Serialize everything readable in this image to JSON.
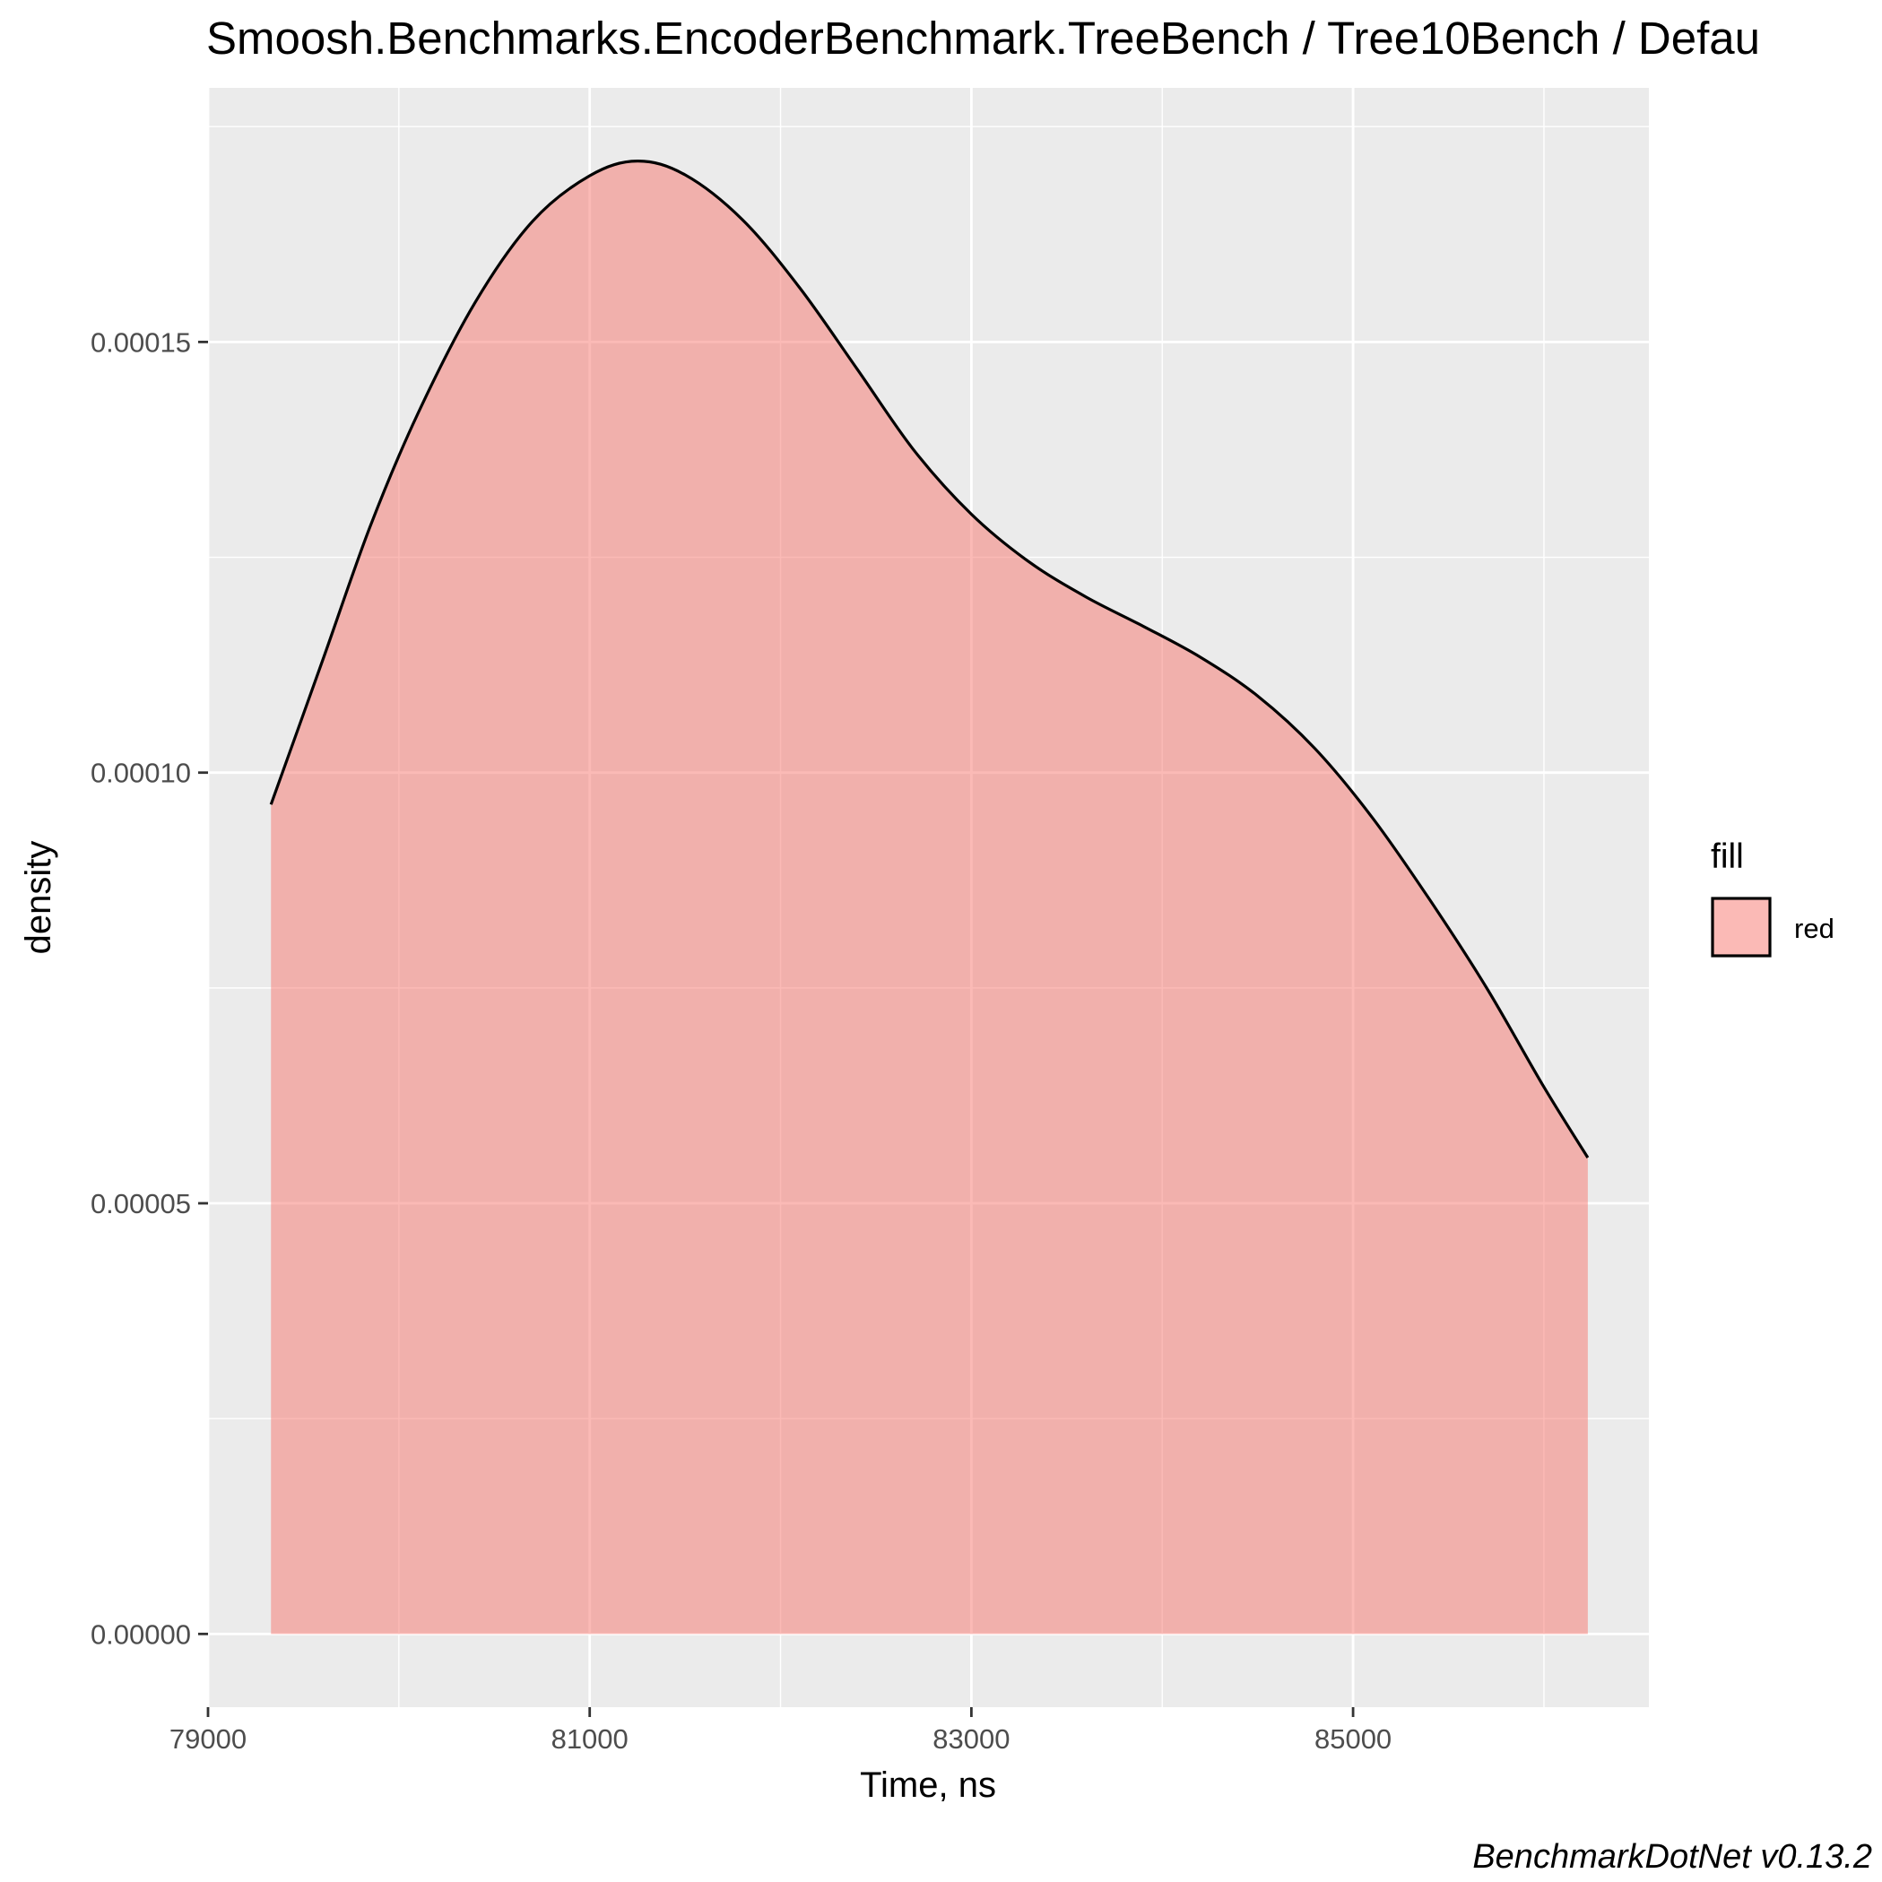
{
  "chart_data": {
    "type": "area",
    "title": "Smoosh.Benchmarks.EncoderBenchmark.TreeBench / Tree10Bench / Defau",
    "xlabel": "Time, ns",
    "ylabel": "density",
    "xlim": [
      79000,
      86550
    ],
    "ylim": [
      -8.5e-06,
      0.0001795
    ],
    "x_ticks": [
      79000,
      81000,
      83000,
      85000
    ],
    "x_tick_labels": [
      "79000",
      "81000",
      "83000",
      "85000"
    ],
    "y_ticks": [
      0.0,
      5e-05,
      0.0001,
      0.00015
    ],
    "y_tick_labels": [
      "0.00000",
      "0.00005",
      "0.00010",
      "0.00015"
    ],
    "grid": true,
    "legend": {
      "title": "fill",
      "position": "right",
      "entries": [
        {
          "label": "red",
          "color": "#F8766D"
        }
      ]
    },
    "fill_color": "#F8766D",
    "fill_opacity": 0.5,
    "line_color": "#000000",
    "panel_background": "#EBEBEB",
    "series": [
      {
        "name": "red",
        "x": [
          79330,
          79600,
          79850,
          80100,
          80400,
          80700,
          81000,
          81250,
          81500,
          81800,
          82100,
          82400,
          82700,
          83000,
          83300,
          83600,
          83900,
          84200,
          84500,
          84800,
          85100,
          85400,
          85700,
          86000,
          86230
        ],
        "y": [
          9.63e-05,
          0.000113,
          0.0001286,
          0.0001417,
          0.0001546,
          0.000164,
          0.0001693,
          0.000171,
          0.0001694,
          0.0001642,
          0.0001563,
          0.0001469,
          0.0001374,
          0.00013,
          0.0001245,
          0.0001204,
          0.000117,
          0.0001134,
          0.0001089,
          0.0001028,
          9.48e-05,
          8.53e-05,
          7.5e-05,
          6.35e-05,
          5.53e-05
        ]
      }
    ]
  },
  "caption": "BenchmarkDotNet v0.13.2"
}
